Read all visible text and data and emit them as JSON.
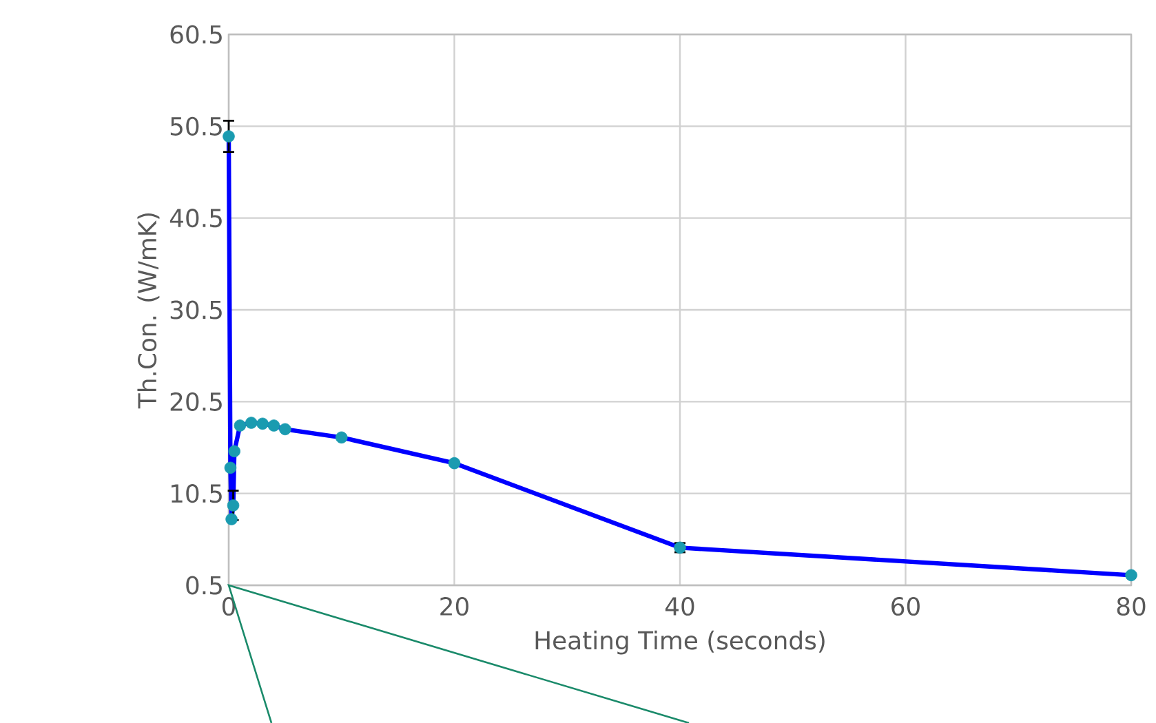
{
  "chart_data": {
    "type": "line",
    "xlabel": "Heating Time (seconds)",
    "ylabel": "Th.Con. (W/mK)",
    "xlim": [
      0,
      80
    ],
    "xticks": [
      0,
      20,
      40,
      60,
      80
    ],
    "ylim": [
      0.5,
      60.5
    ],
    "yticks": [
      0.5,
      10.5,
      20.5,
      30.5,
      40.5,
      50.5,
      60.5
    ],
    "grid": true,
    "series": [
      {
        "color": "#0000ff",
        "x": [
          0,
          0.15,
          0.25,
          0.4,
          0.5,
          1,
          2,
          3,
          4,
          5,
          10,
          20,
          40,
          80
        ],
        "values": [
          49.4,
          13.3,
          7.7,
          9.2,
          15.1,
          17.9,
          18.2,
          18.1,
          17.9,
          17.5,
          16.6,
          13.8,
          4.6,
          1.6
        ]
      },
      {
        "type": "scatter",
        "color": "#1a9bb0",
        "marker": "circle",
        "x": [
          0,
          0.15,
          0.25,
          0.4,
          0.5,
          1,
          2,
          3,
          4,
          5,
          10,
          20,
          40,
          80
        ],
        "values": [
          49.4,
          13.3,
          7.7,
          9.2,
          15.1,
          17.9,
          18.2,
          18.1,
          17.9,
          17.5,
          16.6,
          13.8,
          4.6,
          1.6
        ],
        "errors": [
          1.7,
          null,
          null,
          1.6,
          null,
          null,
          null,
          null,
          null,
          null,
          null,
          null,
          0.5,
          null
        ]
      }
    ]
  }
}
